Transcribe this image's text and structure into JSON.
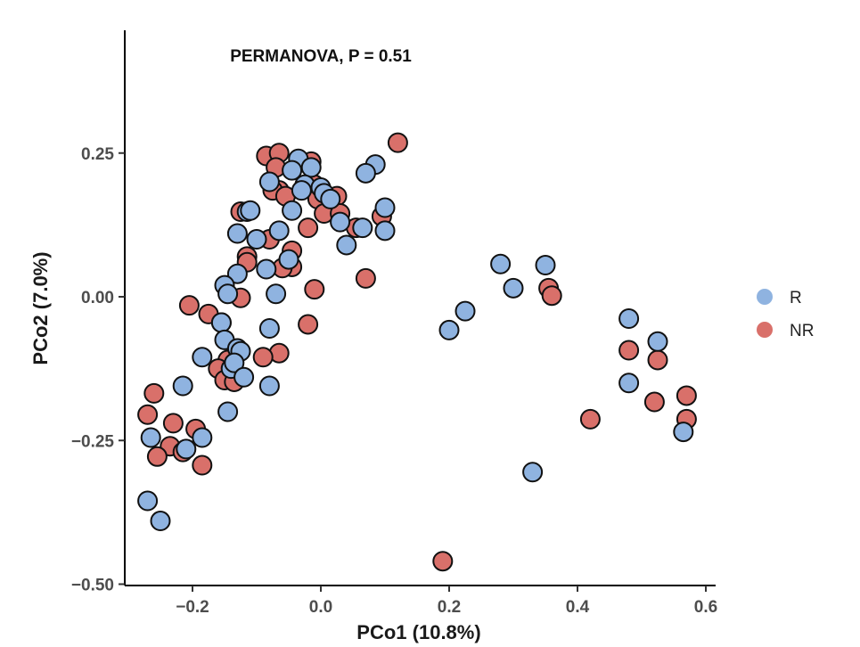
{
  "chart_data": {
    "type": "scatter",
    "annotation": "PERMANOVA, P = 0.51",
    "xlabel": "PCo1 (10.8%)",
    "ylabel": "PCo2 (7.0%)",
    "xlim": [
      -0.31,
      0.61
    ],
    "ylim": [
      -0.5,
      0.46
    ],
    "xticks": [
      -0.2,
      0.0,
      0.2,
      0.4,
      0.6
    ],
    "xtick_labels": [
      "−0.2",
      "0.0",
      "0.2",
      "0.4",
      "0.6"
    ],
    "yticks": [
      -0.5,
      -0.25,
      0.0,
      0.25
    ],
    "ytick_labels": [
      "−0.50",
      "−0.25",
      "0.00",
      "0.25"
    ],
    "grid": false,
    "legend_position": "right",
    "series": [
      {
        "name": "R",
        "color": "#8fb3e0",
        "points": [
          [
            -0.035,
            0.24
          ],
          [
            -0.015,
            0.225
          ],
          [
            -0.08,
            0.2
          ],
          [
            -0.045,
            0.22
          ],
          [
            0.085,
            0.23
          ],
          [
            0.07,
            0.215
          ],
          [
            -0.025,
            0.195
          ],
          [
            -0.03,
            0.185
          ],
          [
            0.0,
            0.19
          ],
          [
            0.005,
            0.18
          ],
          [
            0.015,
            0.17
          ],
          [
            -0.115,
            0.148
          ],
          [
            -0.11,
            0.15
          ],
          [
            -0.045,
            0.15
          ],
          [
            0.1,
            0.155
          ],
          [
            0.03,
            0.13
          ],
          [
            -0.13,
            0.11
          ],
          [
            -0.1,
            0.1
          ],
          [
            -0.065,
            0.115
          ],
          [
            0.065,
            0.12
          ],
          [
            0.1,
            0.115
          ],
          [
            0.04,
            0.09
          ],
          [
            -0.05,
            0.065
          ],
          [
            -0.085,
            0.048
          ],
          [
            -0.13,
            0.04
          ],
          [
            -0.15,
            0.02
          ],
          [
            -0.145,
            0.005
          ],
          [
            -0.07,
            0.005
          ],
          [
            -0.155,
            -0.045
          ],
          [
            -0.08,
            -0.055
          ],
          [
            -0.15,
            -0.075
          ],
          [
            -0.13,
            -0.09
          ],
          [
            -0.125,
            -0.095
          ],
          [
            -0.185,
            -0.105
          ],
          [
            -0.14,
            -0.125
          ],
          [
            -0.135,
            -0.115
          ],
          [
            -0.12,
            -0.14
          ],
          [
            -0.215,
            -0.155
          ],
          [
            -0.08,
            -0.155
          ],
          [
            -0.145,
            -0.2
          ],
          [
            -0.265,
            -0.245
          ],
          [
            -0.185,
            -0.245
          ],
          [
            -0.21,
            -0.265
          ],
          [
            -0.27,
            -0.355
          ],
          [
            -0.25,
            -0.39
          ],
          [
            0.2,
            -0.058
          ],
          [
            0.225,
            -0.025
          ],
          [
            0.28,
            0.057
          ],
          [
            0.3,
            0.015
          ],
          [
            0.35,
            0.055
          ],
          [
            0.48,
            -0.038
          ],
          [
            0.525,
            -0.078
          ],
          [
            0.48,
            -0.15
          ],
          [
            0.565,
            -0.235
          ],
          [
            0.33,
            -0.305
          ]
        ]
      },
      {
        "name": "NR",
        "color": "#d9706a",
        "points": [
          [
            0.12,
            0.268
          ],
          [
            -0.085,
            0.245
          ],
          [
            -0.065,
            0.25
          ],
          [
            -0.015,
            0.235
          ],
          [
            -0.07,
            0.225
          ],
          [
            -0.065,
            0.185
          ],
          [
            -0.075,
            0.185
          ],
          [
            -0.055,
            0.175
          ],
          [
            -0.02,
            0.195
          ],
          [
            -0.01,
            0.195
          ],
          [
            -0.005,
            0.17
          ],
          [
            0.025,
            0.175
          ],
          [
            -0.125,
            0.148
          ],
          [
            0.005,
            0.145
          ],
          [
            0.03,
            0.145
          ],
          [
            0.095,
            0.14
          ],
          [
            -0.02,
            0.12
          ],
          [
            0.055,
            0.12
          ],
          [
            -0.08,
            0.1
          ],
          [
            -0.115,
            0.07
          ],
          [
            -0.115,
            0.06
          ],
          [
            -0.045,
            0.08
          ],
          [
            -0.045,
            0.052
          ],
          [
            -0.06,
            0.05
          ],
          [
            0.07,
            0.032
          ],
          [
            -0.01,
            0.013
          ],
          [
            -0.125,
            -0.002
          ],
          [
            -0.205,
            -0.015
          ],
          [
            -0.175,
            -0.03
          ],
          [
            -0.155,
            -0.045
          ],
          [
            -0.02,
            -0.048
          ],
          [
            -0.065,
            -0.098
          ],
          [
            -0.09,
            -0.105
          ],
          [
            -0.145,
            -0.11
          ],
          [
            -0.16,
            -0.125
          ],
          [
            -0.13,
            -0.14
          ],
          [
            -0.15,
            -0.145
          ],
          [
            -0.135,
            -0.148
          ],
          [
            -0.26,
            -0.168
          ],
          [
            -0.27,
            -0.205
          ],
          [
            -0.23,
            -0.22
          ],
          [
            -0.195,
            -0.23
          ],
          [
            -0.235,
            -0.26
          ],
          [
            -0.215,
            -0.27
          ],
          [
            -0.255,
            -0.278
          ],
          [
            -0.185,
            -0.293
          ],
          [
            0.19,
            -0.46
          ],
          [
            0.355,
            0.015
          ],
          [
            0.36,
            0.002
          ],
          [
            0.48,
            -0.093
          ],
          [
            0.525,
            -0.11
          ],
          [
            0.57,
            -0.172
          ],
          [
            0.52,
            -0.183
          ],
          [
            0.57,
            -0.213
          ],
          [
            0.42,
            -0.213
          ]
        ]
      }
    ]
  }
}
